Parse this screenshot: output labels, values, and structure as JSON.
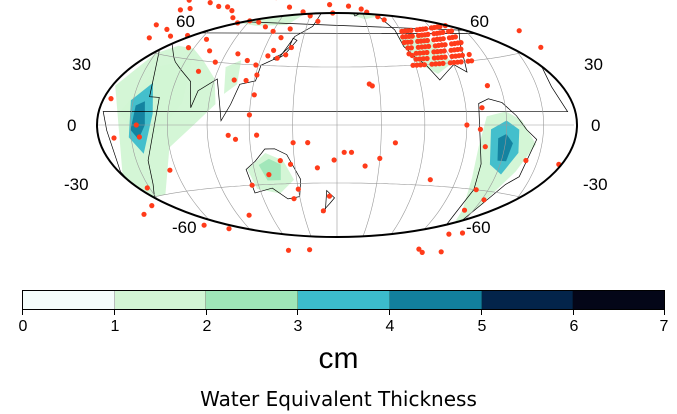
{
  "map": {
    "projection": "Hammer (Pacific-centred)",
    "latitude_labels": [
      "60",
      "30",
      "0",
      "-30",
      "-60"
    ],
    "station_marker_color": "#ff3b1a",
    "coastline_color": "#000000"
  },
  "colorbar": {
    "ticks": [
      "0",
      "1",
      "2",
      "3",
      "4",
      "5",
      "6",
      "7"
    ],
    "colors": [
      "#f4fdfb",
      "#d2f5d4",
      "#9fe6b8",
      "#3cbccb",
      "#127f9d",
      "#03244a",
      "#040618"
    ],
    "units": "cm",
    "title": "Water Equivalent Thickness"
  }
}
